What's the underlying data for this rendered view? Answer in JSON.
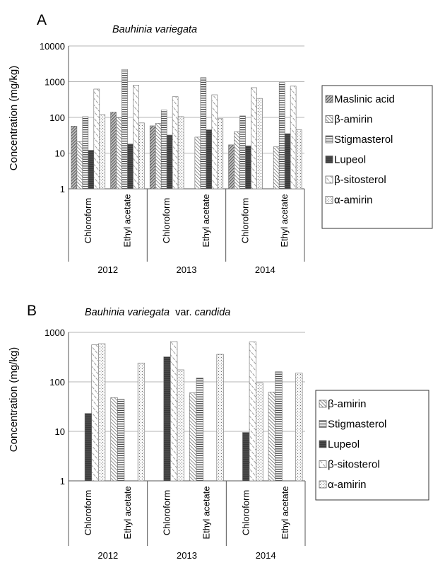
{
  "figure": {
    "panels": [
      {
        "letter": "A",
        "title_species": "Bauhinia variegata",
        "title_suffix": "",
        "ylabel": "Concentration (mg/kg)"
      },
      {
        "letter": "B",
        "title_species": "Bauhinia variegata",
        "title_suffix": "var.",
        "title_variety": "candida",
        "ylabel": "Concentration (mg/kg)"
      }
    ]
  },
  "chart_data": [
    {
      "type": "bar",
      "panel": "A",
      "title": "Bauhinia variegata",
      "ylabel": "Concentration (mg/kg)",
      "yscale": "log",
      "ylim": [
        1,
        10000
      ],
      "yticks": [
        "1",
        "10",
        "100",
        "1000",
        "10000"
      ],
      "groups": [
        "2012",
        "2013",
        "2014"
      ],
      "categories": [
        "Chloroform",
        "Ethyl acetate",
        "Chloroform",
        "Ethyl acetate",
        "Chloroform",
        "Ethyl acetate"
      ],
      "category_groups": [
        "2012",
        "2012",
        "2013",
        "2013",
        "2014",
        "2014"
      ],
      "legend_position": "right",
      "series": [
        {
          "name": "Maslinic acid",
          "pattern": "dense-diag",
          "values": [
            57,
            140,
            58,
            1,
            17,
            1
          ]
        },
        {
          "name": "β-amirin",
          "pattern": "diag",
          "values": [
            21,
            98,
            68,
            28,
            40,
            15
          ]
        },
        {
          "name": "Stigmasterol",
          "pattern": "hlines",
          "values": [
            105,
            2200,
            160,
            1300,
            110,
            950
          ]
        },
        {
          "name": "Lupeol",
          "pattern": "dark",
          "values": [
            12,
            18,
            32,
            45,
            16,
            35
          ]
        },
        {
          "name": "β-sitosterol",
          "pattern": "zigzag",
          "values": [
            620,
            800,
            380,
            430,
            680,
            750
          ]
        },
        {
          "name": "α-amirin",
          "pattern": "dots",
          "values": [
            120,
            70,
            105,
            92,
            340,
            45
          ]
        }
      ]
    },
    {
      "type": "bar",
      "panel": "B",
      "title": "Bauhinia variegata var. candida",
      "ylabel": "Concentration (mg/kg)",
      "yscale": "log",
      "ylim": [
        1,
        1000
      ],
      "yticks": [
        "1",
        "10",
        "100",
        "1000"
      ],
      "groups": [
        "2012",
        "2013",
        "2014"
      ],
      "categories": [
        "Chloroform",
        "Ethyl acetate",
        "Chloroform",
        "Ethyl acetate",
        "Chloroform",
        "Ethyl acetate"
      ],
      "category_groups": [
        "2012",
        "2012",
        "2013",
        "2013",
        "2014",
        "2014"
      ],
      "legend_position": "right",
      "series": [
        {
          "name": "β-amirin",
          "pattern": "diag",
          "values": [
            1,
            48,
            1,
            60,
            1,
            62
          ]
        },
        {
          "name": "Stigmasterol",
          "pattern": "hlines",
          "values": [
            1,
            45,
            1,
            120,
            1,
            160
          ]
        },
        {
          "name": "Lupeol",
          "pattern": "dark",
          "values": [
            23,
            1,
            320,
            1,
            9.5,
            1
          ]
        },
        {
          "name": "β-sitosterol",
          "pattern": "zigzag",
          "values": [
            560,
            1,
            650,
            1,
            640,
            1
          ]
        },
        {
          "name": "α-amirin",
          "pattern": "dots",
          "values": [
            590,
            240,
            175,
            360,
            95,
            150
          ]
        }
      ]
    }
  ]
}
